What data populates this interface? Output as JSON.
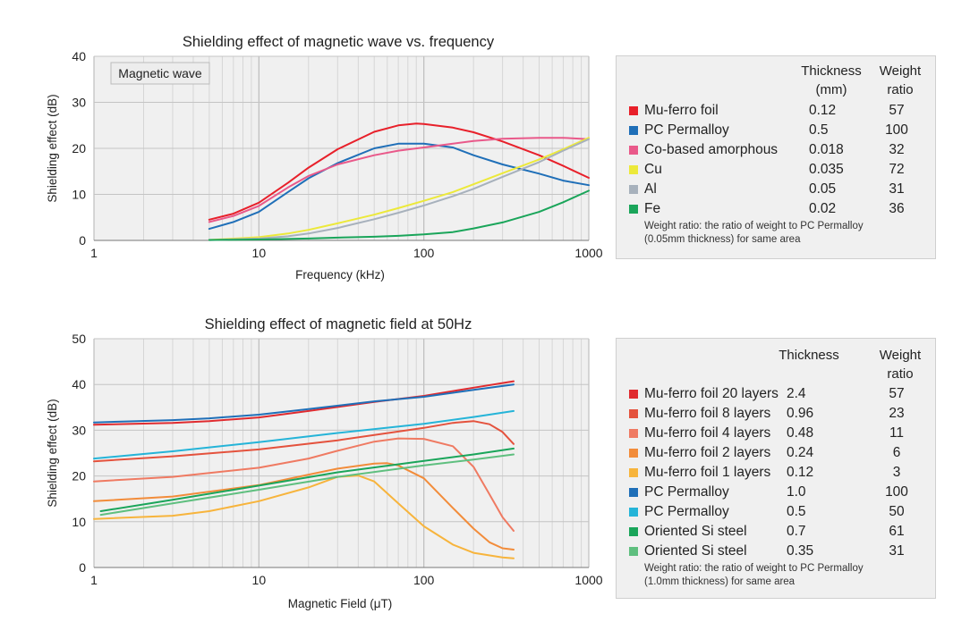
{
  "colors": {
    "mu_ferro": "#e8202a",
    "pc_permalloy": "#1f6fb8",
    "co_amorphous": "#e9598a",
    "cu": "#ece93a",
    "al": "#a7b1bc",
    "fe": "#1aa55a",
    "mu20": "#e02b2f",
    "mu8": "#e4523d",
    "mu4": "#ef7a62",
    "mu2": "#f28c3a",
    "mu1": "#f7b43c",
    "pc1": "#1f6fb8",
    "pc05": "#25b4d8",
    "si07": "#1aa55a",
    "si035": "#5fbf7f"
  },
  "chart_data": [
    {
      "type": "line",
      "title": "Shielding effect of magnetic wave vs. frequency",
      "xlabel": "Frequency  (kHz)",
      "ylabel": "Shielding effect (dB)",
      "x_scale": "log",
      "xlim": [
        1,
        1000
      ],
      "ylim": [
        0,
        40
      ],
      "x_ticks": [
        "1",
        "10",
        "100",
        "1000"
      ],
      "y_ticks": [
        "0",
        "10",
        "20",
        "30",
        "40"
      ],
      "grid": true,
      "annotation": "Magnetic wave",
      "legend": {
        "position": "right",
        "col_thickness": "Thickness\n(mm)",
        "col_ratio": "Weight\nratio",
        "note": "Weight ratio: the ratio of weight to PC Permalloy\n(0.05mm thickness) for same area",
        "rows": [
          {
            "name": "Mu-ferro foil",
            "thickness": "0.12",
            "ratio": "57"
          },
          {
            "name": "PC Permalloy",
            "thickness": "0.5",
            "ratio": "100"
          },
          {
            "name": "Co-based amorphous",
            "thickness": "0.018",
            "ratio": "32"
          },
          {
            "name": "Cu",
            "thickness": "0.035",
            "ratio": "72"
          },
          {
            "name": "Al",
            "thickness": "0.05",
            "ratio": "31"
          },
          {
            "name": "Fe",
            "thickness": "0.02",
            "ratio": "36"
          }
        ]
      },
      "series": [
        {
          "name": "Mu-ferro foil",
          "color_key": "mu_ferro",
          "x": [
            5,
            7,
            10,
            15,
            20,
            30,
            50,
            70,
            90,
            100,
            150,
            200,
            300,
            500,
            700,
            1000
          ],
          "y": [
            4.5,
            5.8,
            8.2,
            12.5,
            15.8,
            19.8,
            23.6,
            25,
            25.4,
            25.3,
            24.5,
            23.5,
            21.5,
            18.5,
            16.2,
            13.6
          ]
        },
        {
          "name": "PC Permalloy",
          "color_key": "pc_permalloy",
          "x": [
            5,
            7,
            10,
            15,
            20,
            30,
            50,
            70,
            100,
            150,
            200,
            300,
            500,
            700,
            1000
          ],
          "y": [
            2.5,
            4,
            6.2,
            10.5,
            13.5,
            16.8,
            20,
            21,
            21,
            20.2,
            18.5,
            16.5,
            14.5,
            13,
            12
          ]
        },
        {
          "name": "Co-based amorphous",
          "color_key": "co_amorphous",
          "x": [
            5,
            7,
            10,
            15,
            20,
            30,
            50,
            70,
            100,
            150,
            200,
            300,
            500,
            700,
            1000
          ],
          "y": [
            4,
            5.3,
            7.5,
            11.5,
            14,
            16.5,
            18.5,
            19.5,
            20.2,
            21,
            21.6,
            22.1,
            22.3,
            22.3,
            22
          ]
        },
        {
          "name": "Cu",
          "color_key": "cu",
          "x": [
            5,
            10,
            15,
            20,
            30,
            50,
            70,
            100,
            150,
            200,
            300,
            500,
            700,
            1000
          ],
          "y": [
            0.1,
            0.7,
            1.5,
            2.3,
            3.7,
            5.6,
            7,
            8.6,
            10.5,
            12.2,
            14.6,
            17.6,
            19.8,
            22.3
          ]
        },
        {
          "name": "Al",
          "color_key": "al",
          "x": [
            5,
            10,
            15,
            20,
            30,
            50,
            70,
            100,
            150,
            200,
            300,
            500,
            700,
            1000
          ],
          "y": [
            0.05,
            0.4,
            0.9,
            1.5,
            2.7,
            4.6,
            6,
            7.6,
            9.6,
            11.2,
            13.8,
            17,
            19.5,
            22
          ]
        },
        {
          "name": "Fe",
          "color_key": "fe",
          "x": [
            5,
            10,
            20,
            30,
            50,
            70,
            100,
            150,
            200,
            300,
            500,
            700,
            1000
          ],
          "y": [
            0.1,
            0.2,
            0.4,
            0.6,
            0.8,
            1,
            1.3,
            1.8,
            2.6,
            3.9,
            6.2,
            8.3,
            10.8
          ]
        }
      ]
    },
    {
      "type": "line",
      "title": "Shielding effect of magnetic field at 50Hz",
      "xlabel": "Magnetic Field  (μT)",
      "ylabel": "Shielding effect (dB)",
      "x_scale": "log",
      "xlim": [
        1,
        1000
      ],
      "ylim": [
        0,
        50
      ],
      "x_ticks": [
        "1",
        "10",
        "100",
        "1000"
      ],
      "y_ticks": [
        "0",
        "10",
        "20",
        "30",
        "40",
        "50"
      ],
      "grid": true,
      "legend": {
        "position": "right",
        "col_thickness": "Thickness",
        "col_ratio": "Weight\nratio",
        "note": "Weight ratio: the ratio of weight to PC Permalloy\n(1.0mm thickness) for same area",
        "rows": [
          {
            "name": "Mu-ferro foil 20 layers",
            "thickness": "2.4",
            "ratio": "57"
          },
          {
            "name": "Mu-ferro foil 8 layers",
            "thickness": "0.96",
            "ratio": "23"
          },
          {
            "name": "Mu-ferro foil 4 layers",
            "thickness": "0.48",
            "ratio": "11"
          },
          {
            "name": "Mu-ferro foil 2 layers",
            "thickness": "0.24",
            "ratio": "6"
          },
          {
            "name": "Mu-ferro foil 1 layers",
            "thickness": "0.12",
            "ratio": "3"
          },
          {
            "name": "PC Permalloy",
            "thickness": "1.0",
            "ratio": "100"
          },
          {
            "name": "PC Permalloy",
            "thickness": "0.5",
            "ratio": "50"
          },
          {
            "name": "Oriented Si steel",
            "thickness": "0.7",
            "ratio": "61"
          },
          {
            "name": "Oriented Si steel",
            "thickness": "0.35",
            "ratio": "31"
          }
        ]
      },
      "series": [
        {
          "name": "Mu-ferro foil 20 layers",
          "color_key": "mu20",
          "x": [
            1,
            3,
            5,
            10,
            20,
            50,
            100,
            200,
            350
          ],
          "y": [
            31.2,
            31.6,
            32,
            32.8,
            34.2,
            36.2,
            37.5,
            39.3,
            40.7
          ]
        },
        {
          "name": "Mu-ferro foil 8 layers",
          "color_key": "mu8",
          "x": [
            1,
            3,
            10,
            30,
            100,
            150,
            200,
            250,
            300,
            350
          ],
          "y": [
            23.2,
            24.3,
            25.8,
            27.8,
            30.5,
            31.6,
            32,
            31.3,
            29.6,
            27
          ]
        },
        {
          "name": "Mu-ferro foil 4 layers",
          "color_key": "mu4",
          "x": [
            1,
            3,
            10,
            20,
            30,
            50,
            70,
            100,
            150,
            200,
            250,
            300,
            350
          ],
          "y": [
            18.8,
            19.8,
            21.8,
            23.8,
            25.5,
            27.5,
            28.2,
            28.1,
            26.5,
            22,
            16,
            11,
            8
          ]
        },
        {
          "name": "Mu-ferro foil 2 layers",
          "color_key": "mu2",
          "x": [
            1,
            3,
            10,
            20,
            30,
            50,
            60,
            70,
            100,
            150,
            200,
            250,
            300,
            350
          ],
          "y": [
            14.5,
            15.5,
            18,
            20.3,
            21.6,
            22.7,
            22.8,
            22.3,
            19.5,
            13,
            8.5,
            5.5,
            4.2,
            3.9
          ]
        },
        {
          "name": "Mu-ferro foil 1 layers",
          "color_key": "mu1",
          "x": [
            1,
            3,
            5,
            10,
            20,
            30,
            40,
            50,
            70,
            100,
            150,
            200,
            300,
            350
          ],
          "y": [
            10.6,
            11.3,
            12.3,
            14.5,
            17.5,
            19.8,
            20.1,
            18.8,
            14,
            9,
            5,
            3.2,
            2.2,
            2
          ]
        },
        {
          "name": "PC Permalloy 1.0",
          "color_key": "pc1",
          "x": [
            1,
            3,
            5,
            10,
            20,
            50,
            100,
            200,
            350
          ],
          "y": [
            31.7,
            32.2,
            32.6,
            33.4,
            34.6,
            36.3,
            37.3,
            38.8,
            40
          ]
        },
        {
          "name": "PC Permalloy 0.5",
          "color_key": "pc05",
          "x": [
            1,
            3,
            10,
            30,
            100,
            200,
            350
          ],
          "y": [
            23.8,
            25.4,
            27.4,
            29.4,
            31.4,
            32.9,
            34.2
          ]
        },
        {
          "name": "Oriented Si steel 0.7",
          "color_key": "si07",
          "x": [
            1.1,
            3,
            10,
            30,
            100,
            200,
            350
          ],
          "y": [
            12.3,
            14.8,
            17.9,
            20.8,
            23.3,
            24.7,
            26
          ]
        },
        {
          "name": "Oriented Si steel 0.35",
          "color_key": "si035",
          "x": [
            1.1,
            3,
            10,
            30,
            100,
            200,
            350
          ],
          "y": [
            11.5,
            14,
            17,
            19.8,
            22.3,
            23.6,
            24.7
          ]
        }
      ]
    }
  ]
}
